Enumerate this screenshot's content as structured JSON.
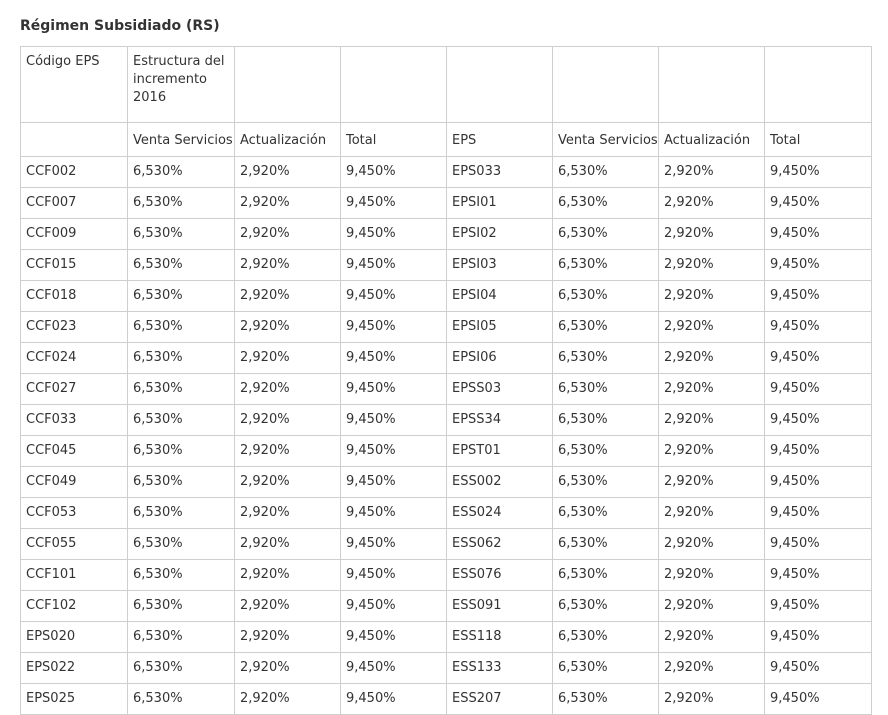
{
  "title": "Régimen Subsidiado (RS)",
  "top_row": [
    "Código EPS",
    "Estructura del incremento 2016",
    "",
    "",
    "",
    "",
    "",
    ""
  ],
  "header_row": [
    "",
    "Venta Servicios",
    "Actualización",
    "Total",
    "EPS",
    "Venta Servicios",
    "Actualización",
    "Total"
  ],
  "rows": [
    [
      "CCF002",
      "6,530%",
      "2,920%",
      "9,450%",
      "EPS033",
      "6,530%",
      "2,920%",
      "9,450%"
    ],
    [
      "CCF007",
      "6,530%",
      "2,920%",
      "9,450%",
      "EPSI01",
      "6,530%",
      "2,920%",
      "9,450%"
    ],
    [
      "CCF009",
      "6,530%",
      "2,920%",
      "9,450%",
      "EPSI02",
      "6,530%",
      "2,920%",
      "9,450%"
    ],
    [
      "CCF015",
      "6,530%",
      "2,920%",
      "9,450%",
      "EPSI03",
      "6,530%",
      "2,920%",
      "9,450%"
    ],
    [
      "CCF018",
      "6,530%",
      "2,920%",
      "9,450%",
      "EPSI04",
      "6,530%",
      "2,920%",
      "9,450%"
    ],
    [
      "CCF023",
      "6,530%",
      "2,920%",
      "9,450%",
      "EPSI05",
      "6,530%",
      "2,920%",
      "9,450%"
    ],
    [
      "CCF024",
      "6,530%",
      "2,920%",
      "9,450%",
      "EPSI06",
      "6,530%",
      "2,920%",
      "9,450%"
    ],
    [
      "CCF027",
      "6,530%",
      "2,920%",
      "9,450%",
      "EPSS03",
      "6,530%",
      "2,920%",
      "9,450%"
    ],
    [
      "CCF033",
      "6,530%",
      "2,920%",
      "9,450%",
      "EPSS34",
      "6,530%",
      "2,920%",
      "9,450%"
    ],
    [
      "CCF045",
      "6,530%",
      "2,920%",
      "9,450%",
      "EPST01",
      "6,530%",
      "2,920%",
      "9,450%"
    ],
    [
      "CCF049",
      "6,530%",
      "2,920%",
      "9,450%",
      "ESS002",
      "6,530%",
      "2,920%",
      "9,450%"
    ],
    [
      "CCF053",
      "6,530%",
      "2,920%",
      "9,450%",
      "ESS024",
      "6,530%",
      "2,920%",
      "9,450%"
    ],
    [
      "CCF055",
      "6,530%",
      "2,920%",
      "9,450%",
      "ESS062",
      "6,530%",
      "2,920%",
      "9,450%"
    ],
    [
      "CCF101",
      "6,530%",
      "2,920%",
      "9,450%",
      "ESS076",
      "6,530%",
      "2,920%",
      "9,450%"
    ],
    [
      "CCF102",
      "6,530%",
      "2,920%",
      "9,450%",
      "ESS091",
      "6,530%",
      "2,920%",
      "9,450%"
    ],
    [
      "EPS020",
      "6,530%",
      "2,920%",
      "9,450%",
      "ESS118",
      "6,530%",
      "2,920%",
      "9,450%"
    ],
    [
      "EPS022",
      "6,530%",
      "2,920%",
      "9,450%",
      "ESS133",
      "6,530%",
      "2,920%",
      "9,450%"
    ],
    [
      "EPS025",
      "6,530%",
      "2,920%",
      "9,450%",
      "ESS207",
      "6,530%",
      "2,920%",
      "9,450%"
    ]
  ]
}
